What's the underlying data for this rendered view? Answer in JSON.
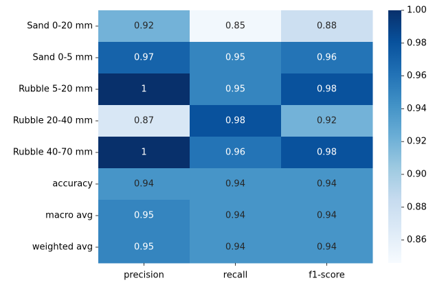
{
  "chart_data": {
    "type": "heatmap",
    "title": "",
    "xlabel": "",
    "ylabel": "",
    "columns": [
      "precision",
      "recall",
      "f1-score"
    ],
    "rows": [
      "Sand 0-20 mm",
      "Sand 0-5 mm",
      "Rubble 5-20 mm",
      "Rubble 20-40 mm",
      "Rubble 40-70 mm",
      "accuracy",
      "macro avg",
      "weighted avg"
    ],
    "values": [
      [
        0.92,
        0.85,
        0.88
      ],
      [
        0.97,
        0.95,
        0.96
      ],
      [
        1.0,
        0.95,
        0.98
      ],
      [
        0.87,
        0.98,
        0.92
      ],
      [
        1.0,
        0.96,
        0.98
      ],
      [
        0.94,
        0.94,
        0.94
      ],
      [
        0.95,
        0.94,
        0.94
      ],
      [
        0.95,
        0.94,
        0.94
      ]
    ],
    "cell_labels": [
      [
        "0.92",
        "0.85",
        "0.88"
      ],
      [
        "0.97",
        "0.95",
        "0.96"
      ],
      [
        "1",
        "0.95",
        "0.98"
      ],
      [
        "0.87",
        "0.98",
        "0.92"
      ],
      [
        "1",
        "0.96",
        "0.98"
      ],
      [
        "0.94",
        "0.94",
        "0.94"
      ],
      [
        "0.95",
        "0.94",
        "0.94"
      ],
      [
        "0.95",
        "0.94",
        "0.94"
      ]
    ],
    "colormap": "Blues",
    "vmin": 0.846,
    "vmax": 1.0,
    "colorbar": {
      "ticks": [
        0.86,
        0.88,
        0.9,
        0.92,
        0.94,
        0.96,
        0.98,
        1.0
      ],
      "tick_labels": [
        "0.86",
        "0.88",
        "0.90",
        "0.92",
        "0.94",
        "0.96",
        "0.98",
        "1.00"
      ]
    }
  }
}
